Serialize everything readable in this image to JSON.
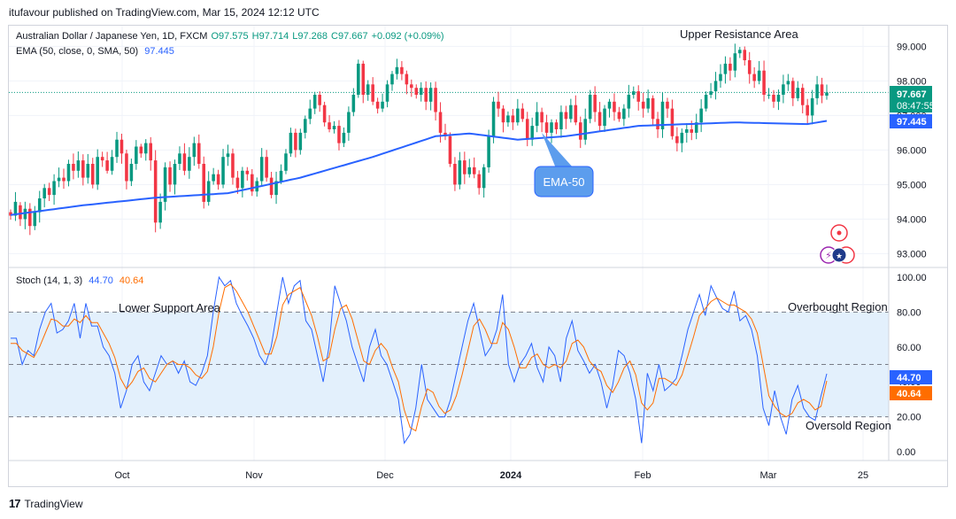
{
  "publisher": "itufavour published on TradingView.com, Mar 15, 2024 12:12 UTC",
  "footer": {
    "logo": "17",
    "brand": "TradingView"
  },
  "price_legend": {
    "symbol": "Australian Dollar / Japanese Yen, 1D, FXCM",
    "open": "O97.575",
    "high": "H97.714",
    "low": "L97.268",
    "close": "C97.667",
    "change": "+0.092 (+0.09%)",
    "ema_label": "EMA (50, close, 0, SMA, 50)",
    "ema_value": "97.445"
  },
  "stoch_legend": {
    "label": "Stoch (14, 1, 3)",
    "k": "44.70",
    "d": "40.64"
  },
  "annotations": {
    "upper_resistance": "Upper Resistance Area",
    "ema_callout": "EMA-50",
    "lower_support": "Lower Support Area",
    "overbought": "Overbought Region",
    "oversold": "Oversold Region"
  },
  "badges": {
    "price": "97.667",
    "countdown": "08:47:55",
    "ema": "97.445",
    "k": "44.70",
    "d": "40.64"
  },
  "colors": {
    "up": "#089981",
    "down": "#f23645",
    "ema": "#2962ff",
    "k": "#2962ff",
    "d": "#ff6d00",
    "band": "#e3f0fc"
  },
  "chart_data": [
    {
      "type": "candlestick",
      "title": "Australian Dollar / Japanese Yen, 1D, FXCM",
      "ylim": [
        92.6,
        99.6
      ],
      "yticks": [
        "99.000",
        "98.000",
        "97.000",
        "96.000",
        "95.000",
        "94.000",
        "93.000"
      ],
      "xticks": [
        "Oct",
        "Nov",
        "Dec",
        "2024",
        "Feb",
        "Mar",
        "25"
      ],
      "last_ohlc": {
        "open": 97.575,
        "high": 97.714,
        "low": 97.268,
        "close": 97.667
      },
      "ema_last": 97.445,
      "ema_anchors": [
        [
          0,
          94.12
        ],
        [
          15,
          94.4
        ],
        [
          30,
          94.62
        ],
        [
          45,
          94.75
        ],
        [
          60,
          95.2
        ],
        [
          75,
          95.8
        ],
        [
          88,
          96.4
        ],
        [
          95,
          96.48
        ],
        [
          105,
          96.3
        ],
        [
          115,
          96.4
        ],
        [
          130,
          96.7
        ],
        [
          150,
          96.8
        ],
        [
          165,
          96.75
        ],
        [
          180,
          97.1
        ],
        [
          188,
          97.4
        ],
        [
          198,
          97.445
        ]
      ],
      "candles": [
        [
          94.2,
          94.1
        ],
        [
          94.1,
          94.5
        ],
        [
          94.4,
          94.0
        ],
        [
          94.0,
          94.3
        ],
        [
          94.3,
          93.8
        ],
        [
          93.8,
          94.2
        ],
        [
          94.2,
          94.6
        ],
        [
          94.6,
          94.9
        ],
        [
          94.9,
          94.7
        ],
        [
          94.7,
          95.1
        ],
        [
          95.1,
          95.2
        ],
        [
          95.2,
          95.1
        ],
        [
          95.1,
          95.6
        ],
        [
          95.6,
          95.4
        ],
        [
          95.4,
          95.7
        ],
        [
          95.7,
          95.2
        ],
        [
          95.2,
          95.6
        ],
        [
          95.6,
          95.0
        ],
        [
          95.0,
          95.8
        ],
        [
          95.8,
          95.7
        ],
        [
          95.7,
          95.4
        ],
        [
          95.4,
          95.8
        ],
        [
          95.8,
          96.3
        ],
        [
          96.3,
          95.9
        ],
        [
          95.9,
          95.1
        ],
        [
          95.1,
          95.6
        ],
        [
          95.6,
          96.1
        ],
        [
          96.1,
          95.9
        ],
        [
          95.9,
          96.2
        ],
        [
          96.2,
          95.7
        ],
        [
          95.7,
          93.9
        ],
        [
          93.9,
          94.5
        ],
        [
          94.5,
          95.5
        ],
        [
          95.5,
          95.0
        ],
        [
          95.0,
          95.6
        ],
        [
          95.6,
          95.9
        ],
        [
          95.9,
          95.4
        ],
        [
          95.4,
          95.8
        ],
        [
          95.8,
          96.2
        ],
        [
          96.2,
          95.6
        ],
        [
          95.6,
          94.5
        ],
        [
          94.5,
          95.1
        ],
        [
          95.1,
          95.3
        ],
        [
          95.3,
          95.0
        ],
        [
          95.0,
          95.8
        ],
        [
          95.8,
          95.9
        ],
        [
          95.9,
          95.2
        ],
        [
          95.2,
          94.9
        ],
        [
          94.9,
          95.4
        ],
        [
          95.4,
          95.3
        ],
        [
          95.3,
          94.8
        ],
        [
          94.8,
          95.1
        ],
        [
          95.1,
          95.8
        ],
        [
          95.8,
          95.2
        ],
        [
          95.2,
          94.7
        ],
        [
          94.7,
          95.1
        ],
        [
          95.1,
          95.4
        ],
        [
          95.4,
          95.9
        ],
        [
          95.9,
          96.5
        ],
        [
          96.5,
          96.0
        ],
        [
          96.0,
          96.5
        ],
        [
          96.5,
          96.9
        ],
        [
          96.9,
          97.2
        ],
        [
          97.2,
          97.6
        ],
        [
          97.6,
          97.3
        ],
        [
          97.3,
          96.8
        ],
        [
          96.8,
          96.6
        ],
        [
          96.6,
          96.7
        ],
        [
          96.7,
          96.2
        ],
        [
          96.2,
          96.5
        ],
        [
          96.5,
          97.1
        ],
        [
          97.1,
          97.6
        ],
        [
          97.6,
          98.5
        ],
        [
          98.5,
          97.6
        ],
        [
          97.6,
          97.9
        ],
        [
          97.9,
          97.4
        ],
        [
          97.4,
          97.2
        ],
        [
          97.2,
          97.4
        ],
        [
          97.4,
          97.9
        ],
        [
          97.9,
          98.2
        ],
        [
          98.2,
          98.4
        ],
        [
          98.4,
          98.2
        ],
        [
          98.2,
          97.9
        ],
        [
          97.9,
          97.8
        ],
        [
          97.8,
          97.6
        ],
        [
          97.6,
          97.8
        ],
        [
          97.8,
          97.4
        ],
        [
          97.4,
          97.8
        ],
        [
          97.8,
          97.1
        ],
        [
          97.1,
          96.5
        ],
        [
          96.5,
          96.4
        ],
        [
          96.4,
          95.6
        ],
        [
          95.6,
          95.0
        ],
        [
          95.0,
          95.7
        ],
        [
          95.7,
          95.3
        ],
        [
          95.3,
          95.5
        ],
        [
          95.5,
          95.3
        ],
        [
          95.3,
          94.9
        ],
        [
          94.9,
          95.5
        ],
        [
          95.5,
          96.4
        ],
        [
          96.4,
          97.4
        ],
        [
          97.4,
          97.2
        ],
        [
          97.2,
          96.8
        ],
        [
          96.8,
          97.0
        ],
        [
          97.0,
          96.8
        ],
        [
          96.8,
          97.2
        ],
        [
          97.2,
          96.9
        ],
        [
          96.9,
          96.3
        ],
        [
          96.3,
          96.7
        ],
        [
          96.7,
          97.1
        ],
        [
          97.1,
          96.8
        ],
        [
          96.8,
          96.5
        ],
        [
          96.5,
          96.8
        ],
        [
          96.8,
          96.6
        ],
        [
          96.6,
          97.1
        ],
        [
          97.1,
          96.9
        ],
        [
          96.9,
          97.3
        ],
        [
          97.3,
          96.8
        ],
        [
          96.8,
          96.3
        ],
        [
          96.3,
          96.9
        ],
        [
          96.9,
          97.6
        ],
        [
          97.6,
          97.1
        ],
        [
          97.1,
          96.7
        ],
        [
          96.7,
          97.2
        ],
        [
          97.2,
          97.4
        ],
        [
          97.4,
          97.1
        ],
        [
          97.1,
          96.9
        ],
        [
          96.9,
          97.2
        ],
        [
          97.2,
          97.6
        ],
        [
          97.6,
          97.7
        ],
        [
          97.7,
          97.4
        ],
        [
          97.4,
          97.2
        ],
        [
          97.2,
          97.5
        ],
        [
          97.5,
          96.9
        ],
        [
          96.9,
          96.6
        ],
        [
          96.6,
          97.4
        ],
        [
          97.4,
          97.2
        ],
        [
          97.2,
          96.4
        ],
        [
          96.4,
          96.2
        ],
        [
          96.2,
          96.5
        ],
        [
          96.5,
          96.6
        ],
        [
          96.6,
          96.5
        ],
        [
          96.5,
          96.8
        ],
        [
          96.8,
          97.2
        ],
        [
          97.2,
          97.6
        ],
        [
          97.6,
          97.7
        ],
        [
          97.7,
          98.0
        ],
        [
          98.0,
          98.2
        ],
        [
          98.2,
          98.5
        ],
        [
          98.5,
          98.3
        ],
        [
          98.3,
          98.8
        ],
        [
          98.8,
          98.9
        ],
        [
          98.9,
          98.6
        ],
        [
          98.6,
          98.2
        ],
        [
          98.2,
          98.0
        ],
        [
          98.0,
          98.3
        ],
        [
          98.3,
          97.6
        ],
        [
          97.6,
          97.6
        ],
        [
          97.6,
          97.4
        ],
        [
          97.4,
          97.6
        ],
        [
          97.6,
          97.9
        ],
        [
          97.9,
          98.0
        ],
        [
          98.0,
          97.5
        ],
        [
          97.5,
          97.8
        ],
        [
          97.8,
          97.3
        ],
        [
          97.3,
          97.0
        ],
        [
          97.0,
          97.5
        ],
        [
          97.5,
          97.9
        ],
        [
          97.9,
          97.575
        ],
        [
          97.575,
          97.667
        ]
      ]
    },
    {
      "type": "line",
      "title": "Stoch (14, 1, 3)",
      "ylim": [
        -5,
        105
      ],
      "yticks": [
        "100.00",
        "80.00",
        "60.00",
        "40.00",
        "20.00",
        "0.00"
      ],
      "bands": {
        "upper": 80,
        "middle": 50,
        "lower": 20
      },
      "series": [
        {
          "name": "%K",
          "last": 44.7,
          "values": [
            65,
            65,
            50,
            58,
            55,
            70,
            80,
            85,
            68,
            70,
            75,
            85,
            65,
            85,
            72,
            72,
            60,
            55,
            45,
            25,
            35,
            50,
            55,
            40,
            35,
            45,
            55,
            50,
            52,
            45,
            52,
            40,
            38,
            45,
            55,
            80,
            100,
            95,
            98,
            85,
            78,
            72,
            65,
            55,
            50,
            60,
            80,
            100,
            85,
            95,
            98,
            75,
            70,
            55,
            40,
            60,
            95,
            85,
            75,
            60,
            50,
            40,
            60,
            70,
            55,
            50,
            40,
            30,
            5,
            10,
            25,
            50,
            30,
            25,
            20,
            20,
            30,
            45,
            60,
            75,
            85,
            70,
            55,
            60,
            70,
            90,
            50,
            40,
            50,
            55,
            62,
            48,
            40,
            60,
            55,
            40,
            65,
            75,
            58,
            52,
            45,
            50,
            40,
            25,
            38,
            58,
            55,
            45,
            30,
            5,
            45,
            35,
            50,
            35,
            38,
            42,
            55,
            70,
            80,
            90,
            78,
            95,
            88,
            82,
            80,
            92,
            75,
            78,
            70,
            55,
            25,
            15,
            35,
            20,
            10,
            30,
            38,
            25,
            20,
            18,
            32,
            44.7
          ]
        },
        {
          "name": "%D",
          "last": 40.64,
          "values": [
            62,
            62,
            58,
            56,
            54,
            60,
            68,
            76,
            75,
            72,
            72,
            76,
            74,
            78,
            74,
            74,
            68,
            62,
            54,
            42,
            36,
            40,
            46,
            48,
            42,
            40,
            45,
            50,
            52,
            50,
            50,
            48,
            44,
            42,
            46,
            60,
            80,
            94,
            96,
            92,
            86,
            80,
            72,
            64,
            56,
            56,
            66,
            84,
            90,
            92,
            94,
            86,
            78,
            66,
            52,
            54,
            70,
            82,
            84,
            76,
            64,
            52,
            50,
            58,
            62,
            58,
            48,
            40,
            24,
            14,
            12,
            26,
            36,
            34,
            26,
            22,
            24,
            32,
            44,
            58,
            72,
            76,
            70,
            62,
            62,
            74,
            70,
            60,
            48,
            48,
            54,
            56,
            50,
            48,
            50,
            48,
            52,
            62,
            64,
            60,
            52,
            48,
            46,
            38,
            34,
            40,
            48,
            52,
            44,
            28,
            24,
            28,
            42,
            42,
            40,
            38,
            44,
            55,
            66,
            78,
            82,
            86,
            88,
            86,
            84,
            84,
            82,
            80,
            76,
            68,
            50,
            32,
            26,
            22,
            20,
            22,
            28,
            30,
            28,
            24,
            26,
            40.64
          ]
        }
      ]
    }
  ]
}
